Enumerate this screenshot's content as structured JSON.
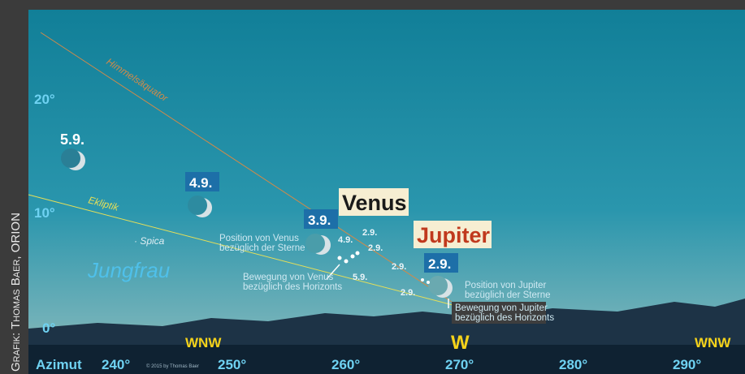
{
  "credit": "Grafik: Thomas Baer, ORION",
  "altitude_labels": [
    "20°",
    "10°",
    "0°"
  ],
  "azimuth": {
    "label": "Azimut",
    "ticks": [
      "240°",
      "250°",
      "260°",
      "270°",
      "280°",
      "290°"
    ]
  },
  "directions": [
    "WNW",
    "W",
    "WNW"
  ],
  "sky_labels": {
    "equator": "Himmelsäquator",
    "ecliptic": "Ekliptik",
    "star": "· Spica",
    "constellation": "Jungfrau"
  },
  "moons": [
    {
      "date": "5.9."
    },
    {
      "date": "4.9."
    },
    {
      "date": "3.9."
    },
    {
      "date": "2.9."
    }
  ],
  "planets": [
    "Venus",
    "Jupiter"
  ],
  "annotations": {
    "venus_position": [
      "Position von Venus",
      "bezüglich der Sterne"
    ],
    "venus_motion": [
      "Bewegung von Venus",
      "bezüglich des Horizonts"
    ],
    "jupiter_position": [
      "Position von Jupiter",
      "bezüglich der Sterne"
    ],
    "jupiter_motion": [
      "Bewegung von Jupiter",
      "bezüglich des Horizonts"
    ]
  },
  "small_dates": [
    "4.9.",
    "2.9.",
    "2.9.",
    "5.9.",
    "2.9.",
    "2.9."
  ],
  "copyright": "© 2015 by Thomas Baer"
}
